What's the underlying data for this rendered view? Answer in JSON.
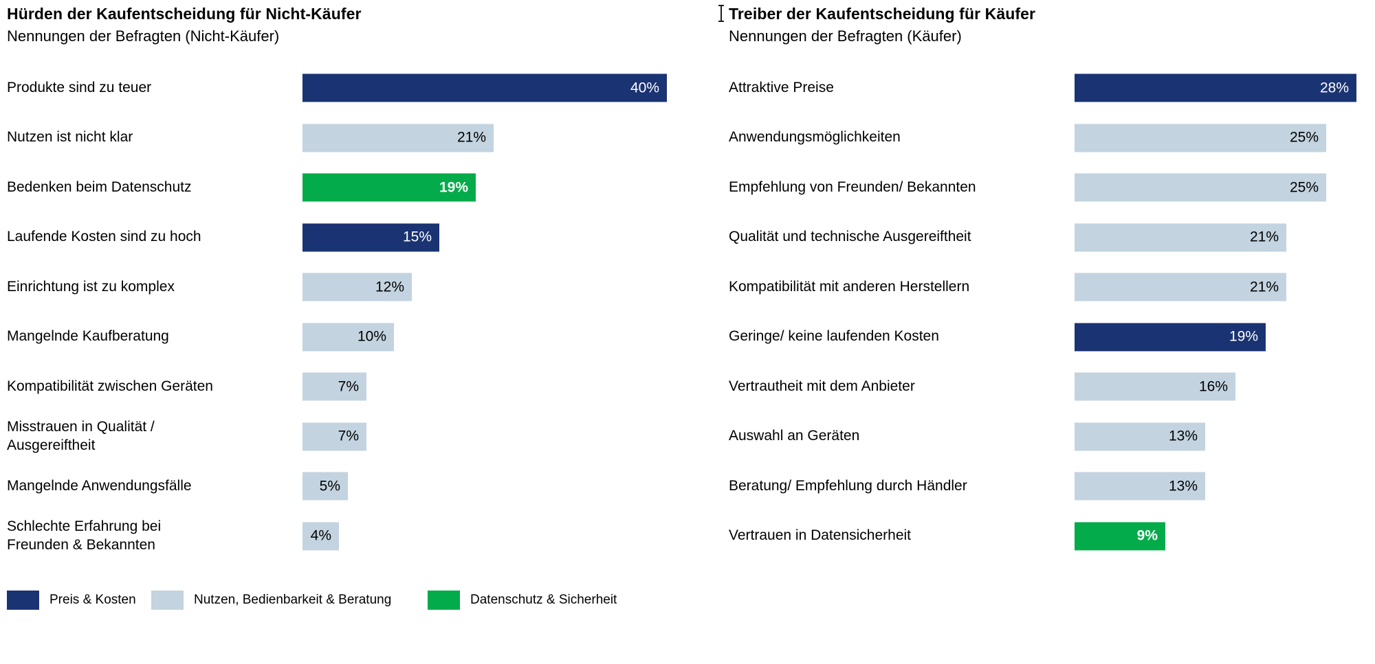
{
  "colors": {
    "navy": "#1a3372",
    "lightblue": "#c3d3e0",
    "green": "#04ab4a",
    "text": "#000000",
    "background": "#ffffff"
  },
  "chart_data": [
    {
      "type": "bar",
      "orientation": "horizontal",
      "title": "Hürden der Kaufentscheidung für Nicht-Käufer",
      "subtitle": "Nennungen der Befragten (Nicht-Käufer)",
      "unit": "%",
      "xlim": [
        0,
        40
      ],
      "grid": false,
      "categories": [
        "Produkte sind zu teuer",
        "Nutzen ist nicht klar",
        "Bedenken beim Datenschutz",
        "Laufende Kosten sind zu hoch",
        "Einrichtung ist zu komplex",
        "Mangelnde Kaufberatung",
        "Kompatibilität zwischen Geräten",
        "Misstrauen in Qualität /\nAusgereiftheit",
        "Mangelnde Anwendungsfälle",
        "Schlechte Erfahrung bei\nFreunden & Bekannten"
      ],
      "values": [
        40,
        21,
        19,
        15,
        12,
        10,
        7,
        7,
        5,
        4
      ],
      "value_labels": [
        "40%",
        "21%",
        "19%",
        "15%",
        "12%",
        "10%",
        "7%",
        "7%",
        "5%",
        "4%"
      ],
      "bar_color_keys": [
        "navy",
        "lightblue",
        "green",
        "navy",
        "lightblue",
        "lightblue",
        "lightblue",
        "lightblue",
        "lightblue",
        "lightblue"
      ]
    },
    {
      "type": "bar",
      "orientation": "horizontal",
      "title": "Treiber der Kaufentscheidung für Käufer",
      "subtitle": "Nennungen der Befragten (Käufer)",
      "unit": "%",
      "xlim": [
        0,
        28
      ],
      "grid": false,
      "categories": [
        "Attraktive Preise",
        "Anwendungsmöglichkeiten",
        "Empfehlung von Freunden/ Bekannten",
        "Qualität und technische Ausgereiftheit",
        "Kompatibilität mit anderen Herstellern",
        "Geringe/ keine laufenden Kosten",
        "Vertrautheit mit dem Anbieter",
        "Auswahl an Geräten",
        "Beratung/ Empfehlung durch Händler",
        "Vertrauen in Datensicherheit"
      ],
      "values": [
        28,
        25,
        25,
        21,
        21,
        19,
        16,
        13,
        13,
        9
      ],
      "value_labels": [
        "28%",
        "25%",
        "25%",
        "21%",
        "21%",
        "19%",
        "16%",
        "13%",
        "13%",
        "9%"
      ],
      "bar_color_keys": [
        "navy",
        "lightblue",
        "lightblue",
        "lightblue",
        "lightblue",
        "navy",
        "lightblue",
        "lightblue",
        "lightblue",
        "green"
      ]
    }
  ],
  "legend": {
    "position": "bottom-left",
    "items": [
      {
        "label": "Preis & Kosten",
        "color_key": "navy"
      },
      {
        "label": "Nutzen, Bedienbarkeit & Beratung",
        "color_key": "lightblue"
      },
      {
        "label": "Datenschutz & Sicherheit",
        "color_key": "green"
      }
    ]
  }
}
